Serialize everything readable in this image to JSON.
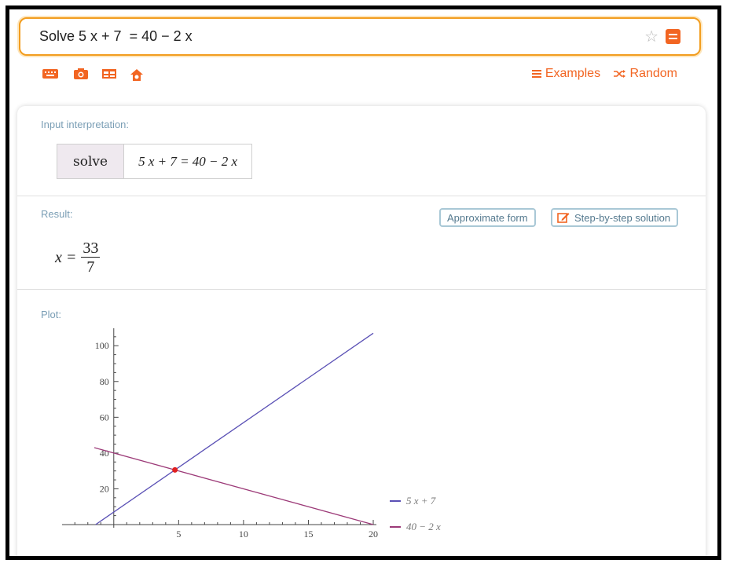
{
  "search": {
    "query": "Solve 5 x + 7  = 40 − 2 x"
  },
  "toolbar": {
    "icons": [
      "keyboard-icon",
      "camera-icon",
      "table-icon",
      "upload-icon"
    ],
    "examples_label": "Examples",
    "random_label": "Random"
  },
  "interpretation": {
    "title": "Input interpretation:",
    "key": "solve",
    "value": "5 x + 7 = 40 − 2 x"
  },
  "result": {
    "title": "Result:",
    "lhs": "x =",
    "numerator": "33",
    "denominator": "7",
    "approx_button": "Approximate form",
    "step_button": "Step-by-step solution"
  },
  "plot": {
    "title": "Plot:"
  },
  "colors": {
    "accent": "#f26522",
    "border": "#f29d1f",
    "line1": "#5a50b5",
    "line2": "#9c3a78",
    "point": "#e02020"
  },
  "chart_data": {
    "type": "line",
    "xlim": [
      -3.5,
      20
    ],
    "ylim": [
      0,
      108
    ],
    "xticks": [
      5,
      10,
      15,
      20
    ],
    "yticks": [
      20,
      40,
      60,
      80,
      100
    ],
    "series": [
      {
        "name": "5 x + 7",
        "x": [
          -1.4,
          20
        ],
        "y": [
          0,
          107
        ]
      },
      {
        "name": "40 − 2 x",
        "x": [
          -1.5,
          20
        ],
        "y": [
          43,
          0
        ]
      }
    ],
    "intersection": {
      "x": 4.714,
      "y": 30.57
    },
    "legend": "bottom-right"
  }
}
